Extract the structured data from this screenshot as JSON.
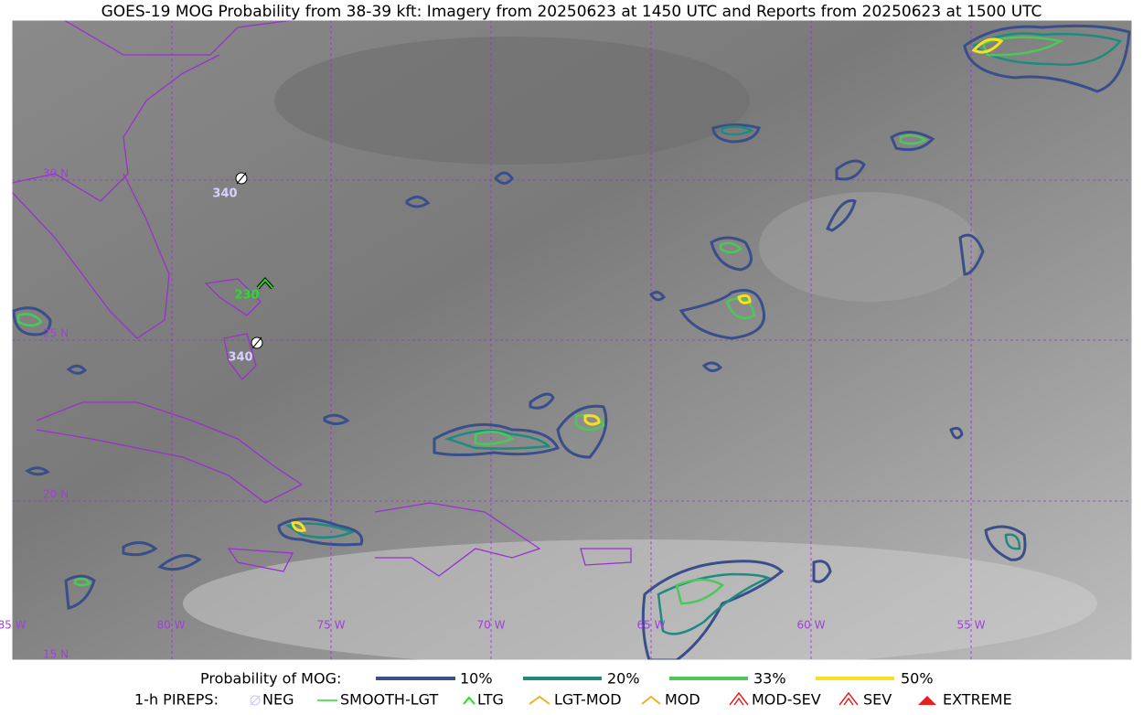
{
  "header": {
    "title": "GOES-19 MOG Probability from 38-39 kft: Imagery from 20250623 at 1450 UTC and Reports from 20250623 at 1500 UTC"
  },
  "map": {
    "lat_labels": [
      "30 N",
      "25 N",
      "20 N",
      "15 N"
    ],
    "lon_labels": [
      "85 W",
      "80 W",
      "75 W",
      "70 W",
      "65 W",
      "60 W",
      "55 W"
    ],
    "reports": [
      "340",
      "230",
      "340"
    ]
  },
  "legend": {
    "probability_title": "Probability of MOG:",
    "probability_levels": [
      "10%",
      "20%",
      "33%",
      "50%"
    ],
    "pireps_title": "1-h PIREPS:",
    "pireps": [
      "NEG",
      "SMOOTH-LGT",
      "LTG",
      "LGT-MOD",
      "MOD",
      "MOD-SEV",
      "SEV",
      "EXTREME"
    ]
  }
}
